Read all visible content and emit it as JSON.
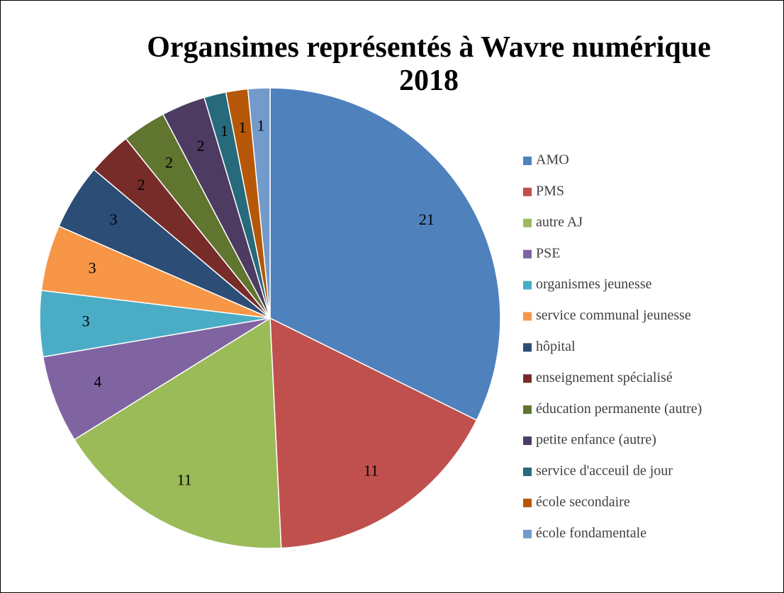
{
  "chart_data": {
    "type": "pie",
    "title": "Organsimes représentés à Wavre numérique 2018",
    "categories": [
      "AMO",
      "PMS",
      "autre AJ",
      "PSE",
      "organismes jeunesse",
      "service communal jeunesse",
      "hôpital",
      "enseignement spécialisé",
      "éducation permanente (autre)",
      "petite enfance (autre)",
      "service d'acceuil de jour",
      "école secondaire",
      "école fondamentale"
    ],
    "values": [
      21,
      11,
      11,
      4,
      3,
      3,
      3,
      2,
      2,
      2,
      1,
      1,
      1
    ],
    "colors": [
      "#4f81bd",
      "#c0504d",
      "#9bbb59",
      "#8064a2",
      "#4bacc6",
      "#f79646",
      "#2c4d75",
      "#772c2a",
      "#5f7530",
      "#4d3b62",
      "#276a7c",
      "#b65708",
      "#729aca"
    ],
    "legend": "right"
  }
}
